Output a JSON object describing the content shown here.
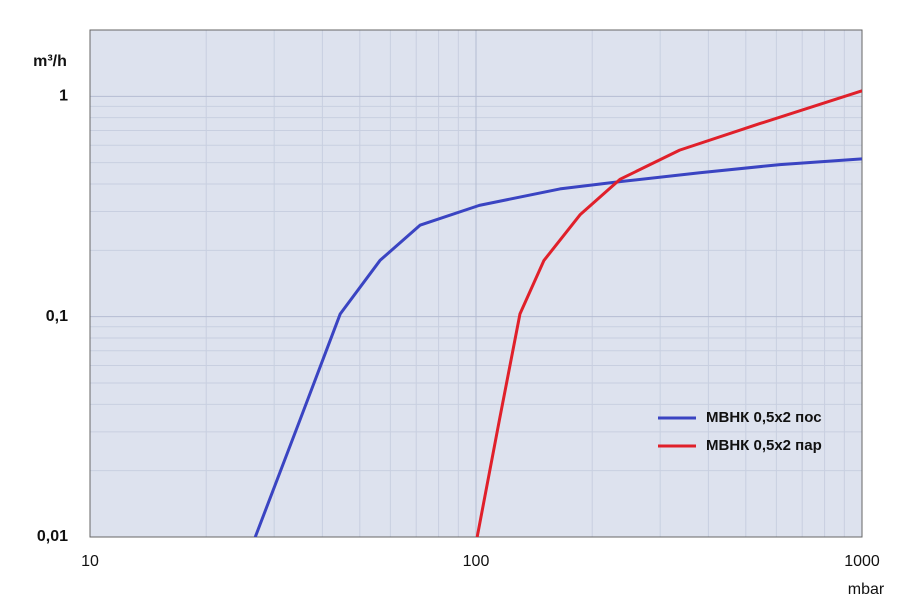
{
  "chart_data": {
    "type": "line",
    "x_label": "mbar",
    "y_label": "m³/h",
    "log_x": true,
    "log_y": true,
    "grid": true,
    "minor_grid": true,
    "xlim": [
      10,
      1000
    ],
    "ylim": [
      0.01,
      2
    ],
    "xticks": [
      10,
      100,
      1000
    ],
    "yticks": [
      {
        "value": 0.01,
        "label": "0,01"
      },
      {
        "value": 0.1,
        "label": "0,1"
      },
      1
    ],
    "legend": "lower right",
    "series": [
      {
        "name": "МВНК 0,5x2 пос",
        "color": "#3a44c2",
        "x": [
          26.8,
          35,
          44.5,
          56.4,
          71.6,
          102,
          165,
          236,
          380,
          613,
          1000
        ],
        "values": [
          0.01,
          0.034,
          0.103,
          0.18,
          0.26,
          0.32,
          0.38,
          0.41,
          0.45,
          0.49,
          0.52
        ]
      },
      {
        "name": "МВНК 0,5x2 пар",
        "color": "#e0202a",
        "x": [
          100.7,
          115,
          130,
          150,
          186,
          236,
          337,
          541,
          1000
        ],
        "values": [
          0.01,
          0.034,
          0.103,
          0.18,
          0.29,
          0.42,
          0.57,
          0.75,
          1.06
        ]
      }
    ]
  }
}
